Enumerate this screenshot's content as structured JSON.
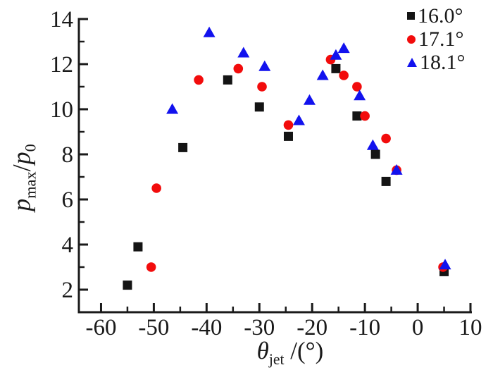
{
  "figure": {
    "background": "#ffffff",
    "axis_color": "#1a1a1a"
  },
  "axes": {
    "x": {
      "title": {
        "symbol": "θ",
        "subscript": "jet",
        "unit": " /(°)"
      },
      "major_ticks": [
        -60,
        -50,
        -40,
        -30,
        -20,
        -10,
        0,
        10
      ],
      "minor_ticks": [
        -55,
        -45,
        -35,
        -25,
        -15,
        -5,
        5
      ]
    },
    "y": {
      "title": {
        "symbol1": "p",
        "subscript1": "max",
        "slash": "/",
        "symbol2": "p",
        "subscript2": "0"
      },
      "major_ticks": [
        2,
        4,
        6,
        8,
        10,
        12,
        14
      ],
      "minor_ticks": [
        3,
        5,
        7,
        9,
        11,
        13
      ]
    }
  },
  "chart_data": {
    "type": "scatter",
    "title": "",
    "xlabel": "theta_jet /(deg)",
    "ylabel": "p_max/p_0",
    "xlim": [
      -64.2,
      10
    ],
    "ylim": [
      1,
      14
    ],
    "grid": false,
    "legend_position": "top-right",
    "series": [
      {
        "name": "16.0°",
        "marker": "square",
        "color": "#141414",
        "points": [
          [
            -55,
            2.2
          ],
          [
            -53,
            3.9
          ],
          [
            -44.5,
            8.3
          ],
          [
            -36,
            11.3
          ],
          [
            -30,
            10.1
          ],
          [
            -24.5,
            8.8
          ],
          [
            -15.5,
            11.8
          ],
          [
            -11.5,
            9.7
          ],
          [
            -8,
            8.0
          ],
          [
            -6,
            6.8
          ],
          [
            5,
            2.8
          ]
        ]
      },
      {
        "name": "17.1°",
        "marker": "circle",
        "color": "#f20c0c",
        "points": [
          [
            -50.5,
            3.0
          ],
          [
            -49.5,
            6.5
          ],
          [
            -41.5,
            11.3
          ],
          [
            -34,
            11.8
          ],
          [
            -29.5,
            11.0
          ],
          [
            -24.5,
            9.3
          ],
          [
            -16.5,
            12.2
          ],
          [
            -14,
            11.5
          ],
          [
            -11.5,
            11.0
          ],
          [
            -10,
            9.7
          ],
          [
            -6,
            8.7
          ],
          [
            -4,
            7.3
          ],
          [
            4.8,
            3.0
          ]
        ]
      },
      {
        "name": "18.1°",
        "marker": "triangle",
        "color": "#1212ee",
        "points": [
          [
            -46.5,
            10.0
          ],
          [
            -39.5,
            13.4
          ],
          [
            -33,
            12.5
          ],
          [
            -29,
            11.9
          ],
          [
            -22.5,
            9.5
          ],
          [
            -20.5,
            10.4
          ],
          [
            -18,
            11.5
          ],
          [
            -15.5,
            12.4
          ],
          [
            -14,
            12.7
          ],
          [
            -11,
            10.6
          ],
          [
            -8.5,
            8.4
          ],
          [
            -4,
            7.3
          ],
          [
            5.2,
            3.1
          ]
        ]
      }
    ]
  }
}
